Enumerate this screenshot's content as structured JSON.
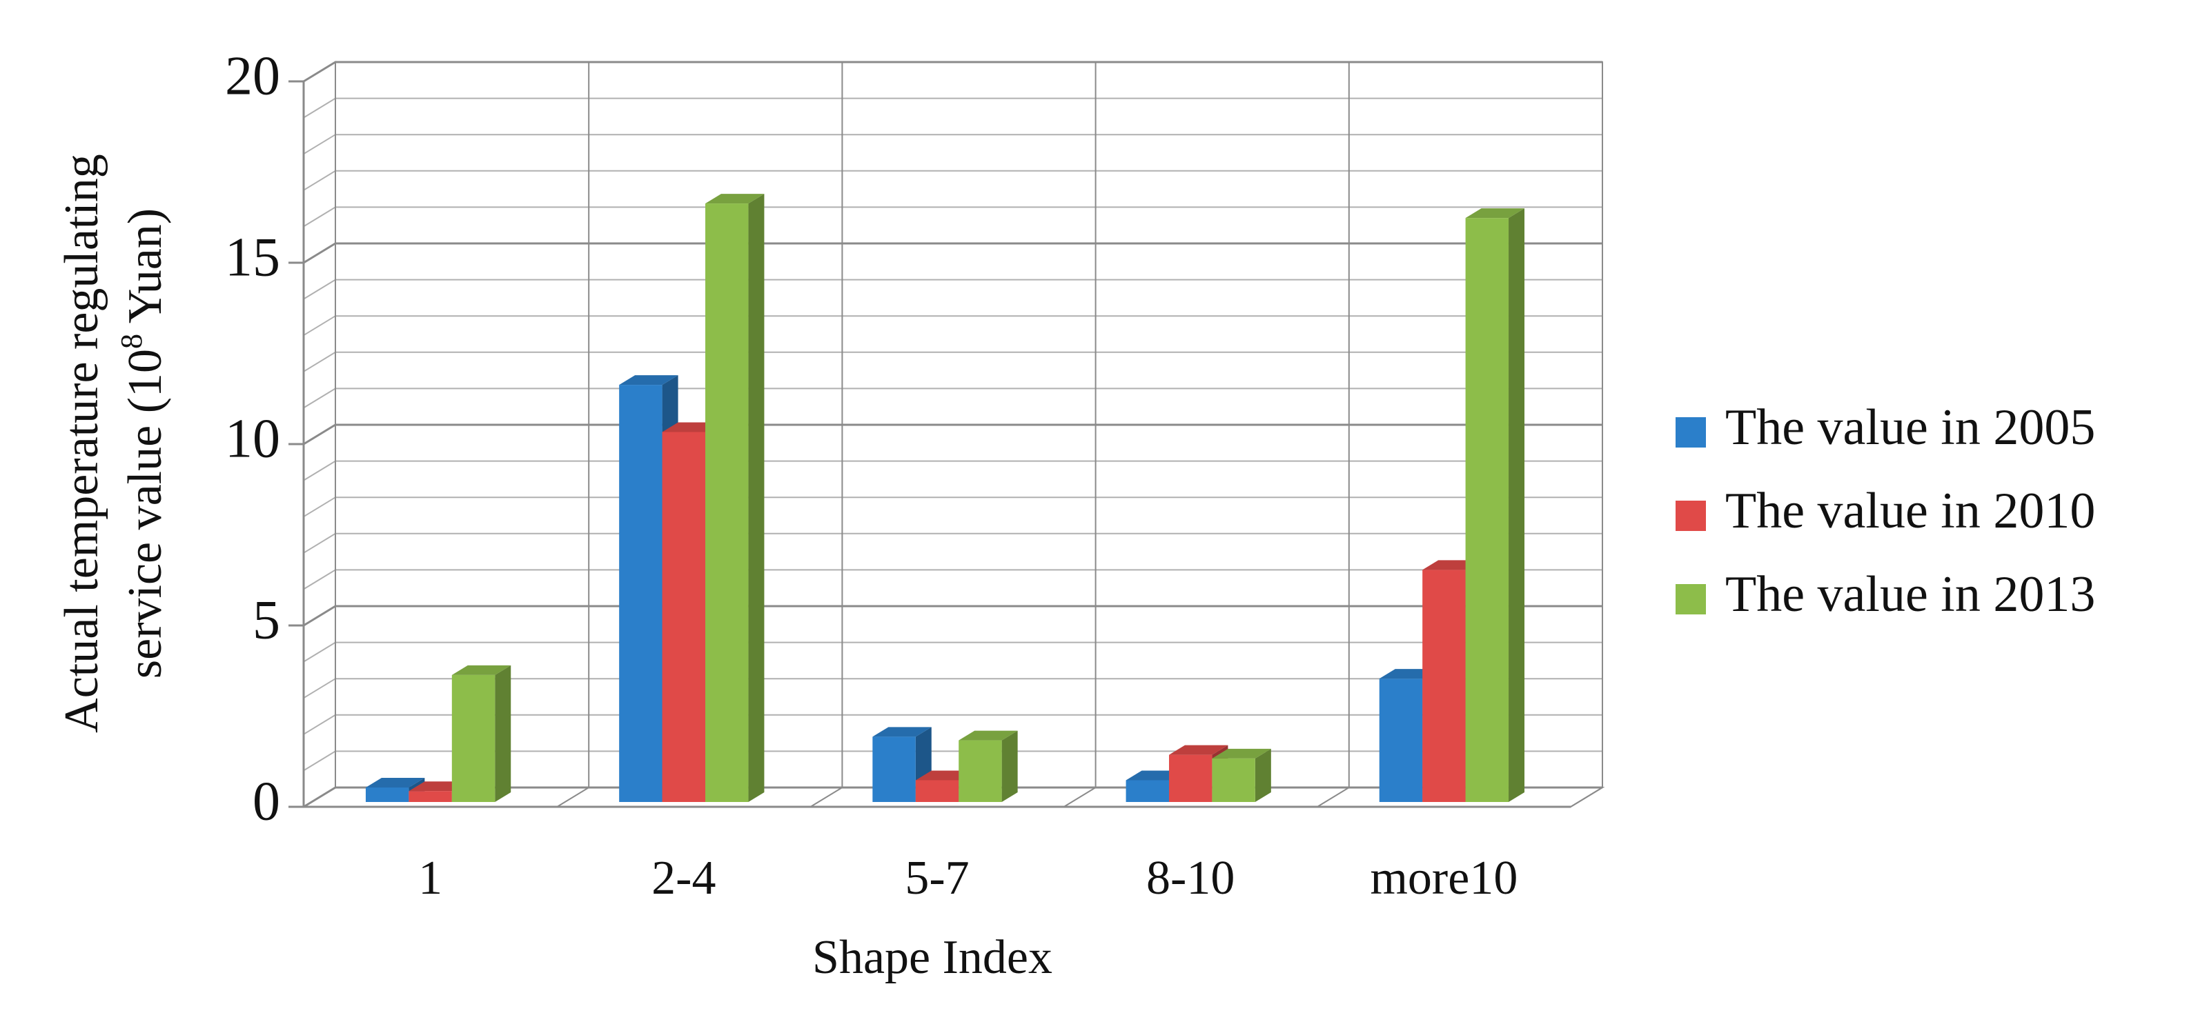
{
  "chart_data": {
    "type": "bar3d",
    "xlabel": "Shape Index",
    "ylabel": [
      "Actual temperature regulating",
      "service value (10",
      "8",
      " Yuan)"
    ],
    "categories": [
      "1",
      "2-4",
      "5-7",
      "8-10",
      "more10"
    ],
    "series": [
      {
        "name": "The value in 2005",
        "color": "#2b7fca",
        "values": [
          0.4,
          11.5,
          1.8,
          0.6,
          3.4
        ]
      },
      {
        "name": "The value in 2010",
        "color": "#e04a48",
        "values": [
          0.3,
          10.2,
          0.6,
          1.3,
          6.4
        ]
      },
      {
        "name": "The value in 2013",
        "color": "#8dbd4a",
        "values": [
          3.5,
          16.5,
          1.7,
          1.2,
          16.1
        ]
      }
    ],
    "ylim": [
      0,
      20
    ],
    "yticks": [
      0,
      5,
      10,
      15,
      20
    ],
    "grid": true,
    "minor_grid_step": 1,
    "legend": "right"
  }
}
